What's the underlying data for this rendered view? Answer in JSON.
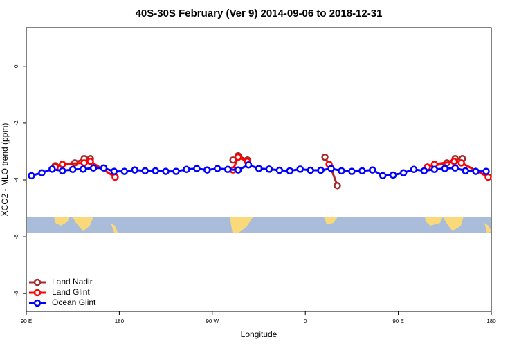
{
  "chart_data": {
    "type": "line",
    "title": "40S-30S February (Ver 9)   2014-09-06 to 2018-12-31",
    "x_label": "Longitude",
    "y_label": "XCO2 - MLO trend (ppm)",
    "xlim": [
      90,
      540
    ],
    "xticks": [
      {
        "value": 90,
        "label": "90 E"
      },
      180,
      {
        "value": 270,
        "label": "90 W"
      },
      {
        "value": 360,
        "label": "0"
      },
      {
        "value": 450,
        "label": "90 E"
      },
      {
        "value": 540,
        "label": "180"
      }
    ],
    "ylim": [
      -8.63,
      1.36
    ],
    "yticks": [
      0,
      -2,
      -4,
      -6,
      -8
    ],
    "legend": "bottom-left",
    "series": [
      {
        "name": "Land Nadir",
        "color": "#a52a2a",
        "x": [
          118,
          137,
          146,
          152,
          null,
          290,
          295,
          304,
          null,
          379,
          385,
          391,
          null,
          478,
          497,
          505,
          512
        ],
        "values": [
          -3.5,
          -3.4,
          -3.25,
          -3.25,
          null,
          -3.3,
          -3.15,
          -3.3,
          null,
          -3.2,
          -3.6,
          -4.2,
          null,
          -3.55,
          -3.4,
          -3.25,
          -3.25
        ]
      },
      {
        "name": "Land Glint",
        "color": "#ff0000",
        "x": [
          118,
          125,
          146,
          152,
          176,
          null,
          290,
          295,
          304,
          null,
          383,
          null,
          478,
          485,
          504,
          511,
          537
        ],
        "values": [
          -3.55,
          -3.45,
          -3.4,
          -3.35,
          -3.9,
          null,
          -3.65,
          -3.2,
          -3.35,
          null,
          -3.45,
          null,
          -3.55,
          -3.45,
          -3.35,
          -3.4,
          -3.9
        ]
      },
      {
        "name": "Ocean Glint",
        "color": "#0000ff",
        "x": [
          95,
          105,
          115,
          125,
          135,
          145,
          155,
          165,
          175,
          185,
          195,
          205,
          215,
          225,
          235,
          245,
          255,
          265,
          275,
          285,
          295,
          305,
          315,
          325,
          335,
          345,
          355,
          365,
          375,
          385,
          395,
          405,
          415,
          425,
          435,
          445,
          455,
          465,
          475,
          485,
          495,
          505,
          515,
          525,
          535
        ],
        "values": [
          -3.85,
          -3.75,
          -3.62,
          -3.68,
          -3.63,
          -3.62,
          -3.58,
          -3.58,
          -3.7,
          -3.7,
          -3.65,
          -3.68,
          -3.68,
          -3.7,
          -3.7,
          -3.63,
          -3.6,
          -3.65,
          -3.6,
          -3.63,
          -3.65,
          -3.47,
          -3.6,
          -3.62,
          -3.66,
          -3.68,
          -3.62,
          -3.66,
          -3.66,
          -3.6,
          -3.68,
          -3.7,
          -3.68,
          -3.65,
          -3.85,
          -3.83,
          -3.75,
          -3.63,
          -3.68,
          -3.63,
          -3.6,
          -3.58,
          -3.68,
          -3.7,
          -3.7
        ]
      }
    ]
  }
}
